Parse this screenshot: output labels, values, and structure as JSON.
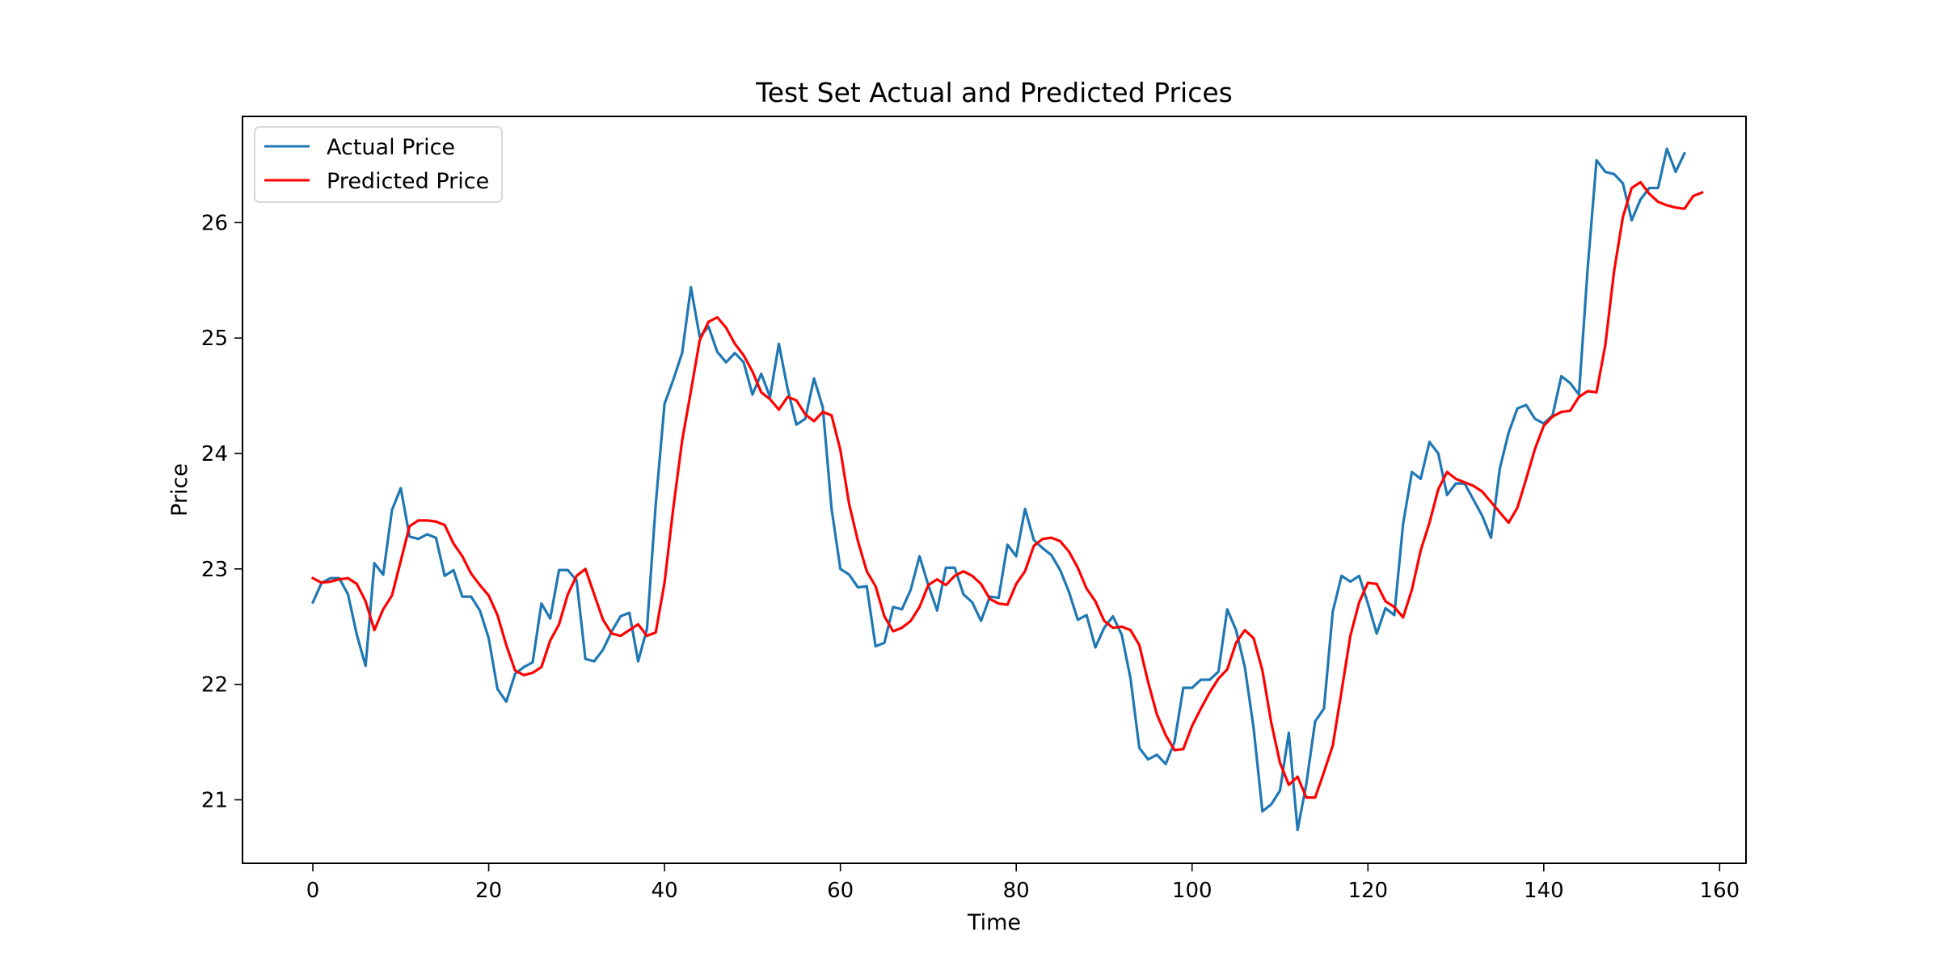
{
  "chart_data": {
    "type": "line",
    "title": "Test Set Actual and Predicted Prices",
    "xlabel": "Time",
    "ylabel": "Price",
    "xlim": [
      -8,
      163
    ],
    "ylim": [
      20.45,
      26.92
    ],
    "xticks": [
      0,
      20,
      40,
      60,
      80,
      100,
      120,
      140,
      160
    ],
    "yticks": [
      21,
      22,
      23,
      24,
      25,
      26
    ],
    "grid": false,
    "legend_position": "upper-left",
    "series": [
      {
        "name": "Actual Price",
        "color": "#1f77b4",
        "values": [
          22.71,
          22.88,
          22.92,
          22.92,
          22.78,
          22.43,
          22.16,
          23.05,
          22.95,
          23.51,
          23.7,
          23.28,
          23.26,
          23.3,
          23.27,
          22.94,
          22.99,
          22.76,
          22.76,
          22.64,
          22.4,
          21.96,
          21.85,
          22.09,
          22.15,
          22.19,
          22.7,
          22.57,
          22.99,
          22.99,
          22.9,
          22.22,
          22.2,
          22.3,
          22.46,
          22.59,
          22.62,
          22.2,
          22.48,
          23.56,
          24.43,
          24.64,
          24.87,
          25.44,
          25.01,
          25.1,
          24.88,
          24.79,
          24.87,
          24.79,
          24.51,
          24.69,
          24.49,
          24.95,
          24.56,
          24.25,
          24.3,
          24.65,
          24.4,
          23.52,
          23.0,
          22.95,
          22.84,
          22.85,
          22.33,
          22.36,
          22.67,
          22.65,
          22.82,
          23.11,
          22.86,
          22.64,
          23.01,
          23.01,
          22.78,
          22.71,
          22.55,
          22.76,
          22.75,
          23.21,
          23.11,
          23.52,
          23.25,
          23.18,
          23.12,
          22.99,
          22.8,
          22.56,
          22.6,
          22.32,
          22.49,
          22.59,
          22.43,
          22.05,
          21.45,
          21.35,
          21.39,
          21.31,
          21.5,
          21.97,
          21.97,
          22.04,
          22.04,
          22.11,
          22.65,
          22.47,
          22.15,
          21.62,
          20.9,
          20.96,
          21.08,
          21.58,
          20.74,
          21.14,
          21.68,
          21.79,
          22.63,
          22.94,
          22.89,
          22.94,
          22.7,
          22.44,
          22.66,
          22.6,
          23.39,
          23.84,
          23.78,
          24.1,
          24.0,
          23.64,
          23.74,
          23.74,
          23.6,
          23.46,
          23.27,
          23.87,
          24.18,
          24.39,
          24.42,
          24.3,
          24.26,
          24.33,
          24.67,
          24.61,
          24.51,
          25.61,
          26.54,
          26.44,
          26.42,
          26.34,
          26.02,
          26.2,
          26.3,
          26.3,
          26.64,
          26.44,
          26.6
        ]
      },
      {
        "name": "Predicted Price",
        "color": "#ff0000",
        "values": [
          22.92,
          22.88,
          22.89,
          22.91,
          22.92,
          22.87,
          22.72,
          22.47,
          22.65,
          22.77,
          23.07,
          23.37,
          23.42,
          23.42,
          23.41,
          23.38,
          23.22,
          23.11,
          22.96,
          22.86,
          22.77,
          22.6,
          22.34,
          22.12,
          22.08,
          22.1,
          22.15,
          22.38,
          22.52,
          22.78,
          22.94,
          23.0,
          22.78,
          22.56,
          22.44,
          22.42,
          22.47,
          22.52,
          22.42,
          22.45,
          22.88,
          23.53,
          24.11,
          24.54,
          24.98,
          25.14,
          25.18,
          25.09,
          24.95,
          24.85,
          24.71,
          24.53,
          24.47,
          24.38,
          24.49,
          24.46,
          24.34,
          24.28,
          24.36,
          24.33,
          24.03,
          23.56,
          23.24,
          22.98,
          22.85,
          22.59,
          22.46,
          22.49,
          22.55,
          22.67,
          22.86,
          22.91,
          22.86,
          22.94,
          22.98,
          22.94,
          22.87,
          22.74,
          22.7,
          22.69,
          22.87,
          22.98,
          23.2,
          23.26,
          23.27,
          23.24,
          23.15,
          23.01,
          22.83,
          22.72,
          22.55,
          22.49,
          22.5,
          22.47,
          22.34,
          22.02,
          21.74,
          21.56,
          21.43,
          21.44,
          21.64,
          21.79,
          21.93,
          22.05,
          22.13,
          22.36,
          22.47,
          22.4,
          22.12,
          21.67,
          21.32,
          21.13,
          21.2,
          21.02,
          21.02,
          21.24,
          21.47,
          21.94,
          22.42,
          22.71,
          22.88,
          22.87,
          22.72,
          22.67,
          22.58,
          22.82,
          23.16,
          23.4,
          23.69,
          23.84,
          23.78,
          23.75,
          23.72,
          23.67,
          23.58,
          23.49,
          23.4,
          23.53,
          23.78,
          24.04,
          24.24,
          24.32,
          24.36,
          24.37,
          24.49,
          24.54,
          24.53,
          24.94,
          25.58,
          26.05,
          26.3,
          26.35,
          26.25,
          26.18,
          26.15,
          26.13,
          26.12,
          26.23,
          26.26
        ]
      }
    ]
  }
}
